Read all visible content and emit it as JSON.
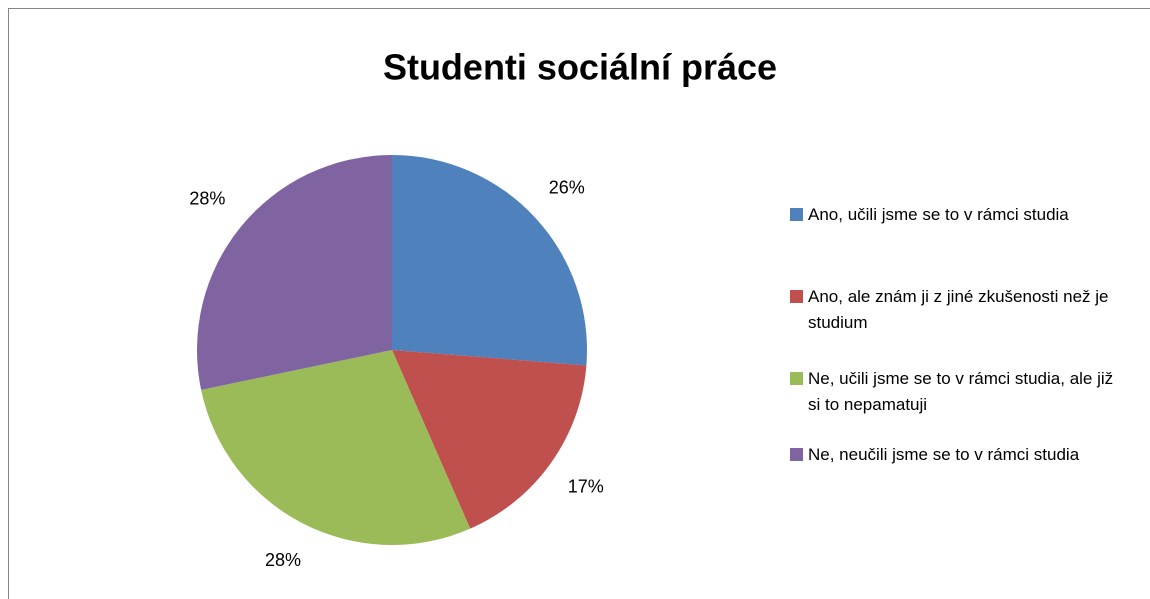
{
  "chart_data": {
    "type": "pie",
    "title": "Studenti sociální práce",
    "categories": [
      "Ano, učili jsme se to v rámci studia",
      "Ano, ale znám ji z jiné zkušenosti než je studium",
      "Ne, učili jsme se to v rámci studia, ale již si to nepamatuji",
      "Ne, neučili jsme se to v rámci studia"
    ],
    "values": [
      26,
      17,
      28,
      28
    ],
    "value_labels": [
      "26%",
      "17%",
      "28%",
      "28%"
    ],
    "colors": [
      "#4f81bd",
      "#c0504d",
      "#9bbb59",
      "#8064a2"
    ],
    "legend": "right"
  }
}
